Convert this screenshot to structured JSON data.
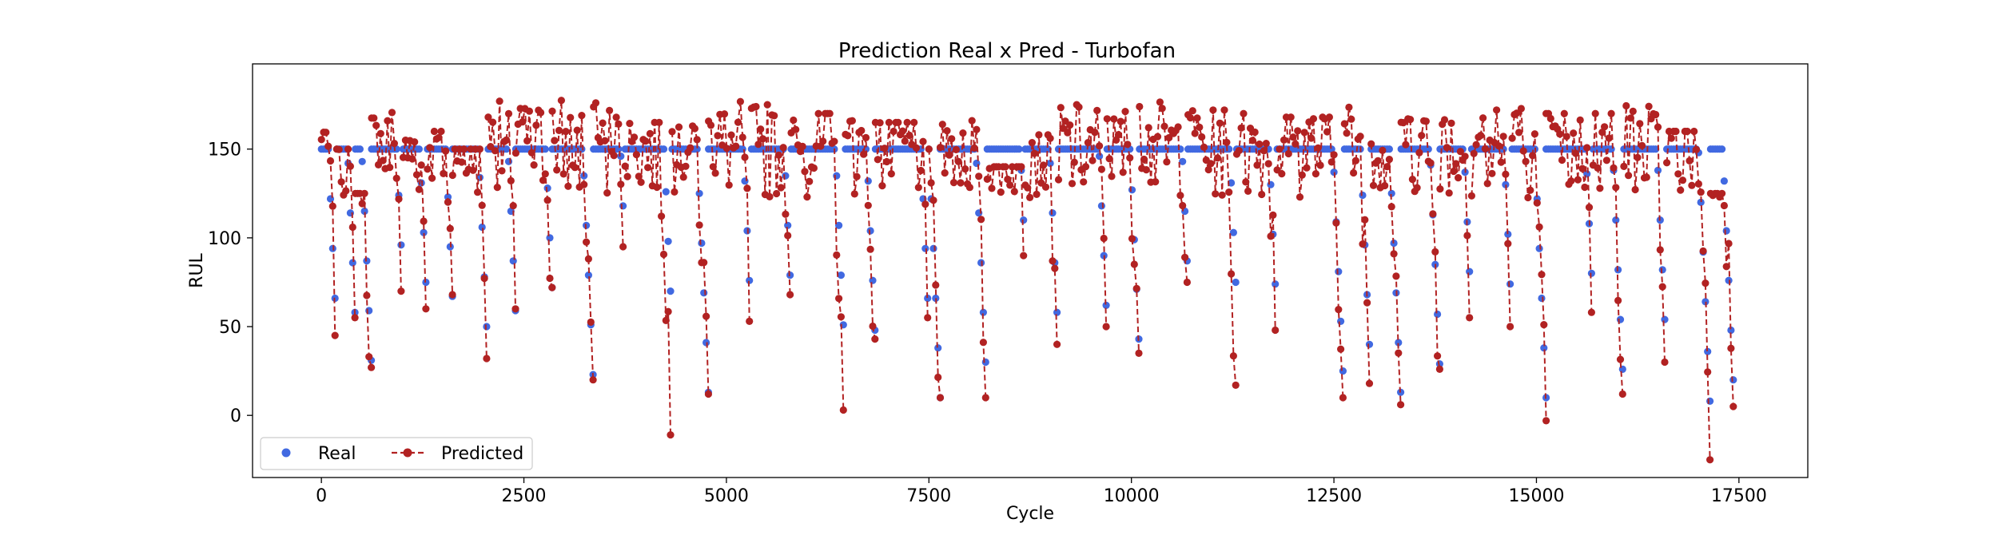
{
  "chart_data": {
    "type": "scatter",
    "title": "Prediction Real x Pred - Turbofan",
    "xlabel": "Cycle",
    "ylabel": "RUL",
    "xlim": [
      -850,
      18350
    ],
    "ylim": [
      -35,
      198
    ],
    "xticks": [
      0,
      2500,
      5000,
      7500,
      10000,
      12500,
      15000,
      17500
    ],
    "yticks": [
      0,
      50,
      100,
      150
    ],
    "xtick_labels": [
      "0",
      "2500",
      "5000",
      "7500",
      "10000",
      "12500",
      "15000",
      "17500"
    ],
    "ytick_labels": [
      "0",
      "50",
      "100",
      "150"
    ],
    "grid": false,
    "legend_position": "lower-left",
    "colors": {
      "real": "#4169e1",
      "predicted": "#b22222"
    },
    "series": [
      {
        "name": "Real",
        "style": "markers",
        "color": "#4169e1",
        "engines": [
          {
            "x0": 0,
            "x1": 190,
            "min": 44
          },
          {
            "x0": 190,
            "x1": 420,
            "min": 52
          },
          {
            "x0": 420,
            "x1": 620,
            "min": 27
          },
          {
            "x0": 620,
            "x1": 1010,
            "min": 70
          },
          {
            "x0": 1010,
            "x1": 1310,
            "min": 55
          },
          {
            "x0": 1310,
            "x1": 1620,
            "min": 65
          },
          {
            "x0": 1620,
            "x1": 2060,
            "min": 30
          },
          {
            "x0": 2060,
            "x1": 2400,
            "min": 55
          },
          {
            "x0": 2400,
            "x1": 2850,
            "min": 70
          },
          {
            "x0": 2850,
            "x1": 3360,
            "min": 17
          },
          {
            "x0": 3360,
            "x1": 3750,
            "min": 92
          },
          {
            "x0": 3750,
            "x1": 4330,
            "min": 50
          },
          {
            "x0": 4330,
            "x1": 4780,
            "min": 11
          },
          {
            "x0": 4780,
            "x1": 5310,
            "min": 50
          },
          {
            "x0": 5310,
            "x1": 5800,
            "min": 65
          },
          {
            "x0": 5800,
            "x1": 6470,
            "min": 25
          },
          {
            "x0": 6470,
            "x1": 6840,
            "min": 42
          },
          {
            "x0": 6840,
            "x1": 7500,
            "min": 50
          },
          {
            "x0": 7500,
            "x1": 7640,
            "min": 7
          },
          {
            "x0": 7640,
            "x1": 8220,
            "min": 10
          },
          {
            "x0": 8220,
            "x1": 8690,
            "min": 88
          },
          {
            "x0": 8690,
            "x1": 9100,
            "min": 40
          },
          {
            "x0": 9100,
            "x1": 9700,
            "min": 50
          },
          {
            "x0": 9700,
            "x1": 10100,
            "min": 35
          },
          {
            "x0": 10100,
            "x1": 10700,
            "min": 75
          },
          {
            "x0": 10700,
            "x1": 11300,
            "min": 63
          },
          {
            "x0": 11300,
            "x1": 11800,
            "min": 50
          },
          {
            "x0": 11800,
            "x1": 12630,
            "min": 7
          },
          {
            "x0": 12630,
            "x1": 12960,
            "min": 18
          },
          {
            "x0": 12960,
            "x1": 13330,
            "min": 7
          },
          {
            "x0": 13330,
            "x1": 13810,
            "min": 25
          },
          {
            "x0": 13810,
            "x1": 14200,
            "min": 55
          },
          {
            "x0": 14200,
            "x1": 14700,
            "min": 50
          },
          {
            "x0": 14700,
            "x1": 15120,
            "min": 10
          },
          {
            "x0": 15120,
            "x1": 15700,
            "min": 60
          },
          {
            "x0": 15700,
            "x1": 16080,
            "min": 10
          },
          {
            "x0": 16080,
            "x1": 16610,
            "min": 28
          },
          {
            "x0": 16610,
            "x1": 17150,
            "min": 0
          },
          {
            "x0": 17150,
            "x1": 17450,
            "min": 0
          }
        ]
      },
      {
        "name": "Predicted",
        "style": "dashed-line-markers",
        "color": "#b22222",
        "engines": [
          {
            "x0": 0,
            "x1": 190,
            "end": 45,
            "top": 160
          },
          {
            "x0": 190,
            "x1": 420,
            "end": 55,
            "top": 150
          },
          {
            "x0": 420,
            "x1": 620,
            "end": 27,
            "top": 125
          },
          {
            "x0": 620,
            "x1": 1010,
            "end": 70,
            "top": 175
          },
          {
            "x0": 1010,
            "x1": 1310,
            "end": 60,
            "top": 155
          },
          {
            "x0": 1310,
            "x1": 1620,
            "end": 68,
            "top": 160
          },
          {
            "x0": 1620,
            "x1": 2060,
            "end": 32,
            "top": 150
          },
          {
            "x0": 2060,
            "x1": 2400,
            "end": 60,
            "top": 189
          },
          {
            "x0": 2400,
            "x1": 2850,
            "end": 72,
            "top": 176
          },
          {
            "x0": 2850,
            "x1": 3360,
            "end": 20,
            "top": 183
          },
          {
            "x0": 3360,
            "x1": 3750,
            "end": 95,
            "top": 176
          },
          {
            "x0": 3750,
            "x1": 4330,
            "end": -11,
            "top": 165
          },
          {
            "x0": 4330,
            "x1": 4780,
            "end": 12,
            "top": 163
          },
          {
            "x0": 4780,
            "x1": 5310,
            "end": 53,
            "top": 183
          },
          {
            "x0": 5310,
            "x1": 5800,
            "end": 68,
            "top": 176
          },
          {
            "x0": 5800,
            "x1": 6470,
            "end": 3,
            "top": 170
          },
          {
            "x0": 6470,
            "x1": 6840,
            "end": 43,
            "top": 170
          },
          {
            "x0": 6840,
            "x1": 7500,
            "end": 55,
            "top": 165
          },
          {
            "x0": 7500,
            "x1": 7640,
            "end": 10,
            "top": 150
          },
          {
            "x0": 7640,
            "x1": 8220,
            "end": 10,
            "top": 166
          },
          {
            "x0": 8220,
            "x1": 8690,
            "end": 90,
            "top": 140
          },
          {
            "x0": 8690,
            "x1": 9100,
            "end": 40,
            "top": 158
          },
          {
            "x0": 9100,
            "x1": 9700,
            "end": 50,
            "top": 175
          },
          {
            "x0": 9700,
            "x1": 10100,
            "end": 35,
            "top": 172
          },
          {
            "x0": 10100,
            "x1": 10700,
            "end": 75,
            "top": 177
          },
          {
            "x0": 10700,
            "x1": 11300,
            "end": 17,
            "top": 172
          },
          {
            "x0": 11300,
            "x1": 11800,
            "end": 48,
            "top": 170
          },
          {
            "x0": 11800,
            "x1": 12630,
            "end": 10,
            "top": 168
          },
          {
            "x0": 12630,
            "x1": 12960,
            "end": 18,
            "top": 180
          },
          {
            "x0": 12960,
            "x1": 13330,
            "end": 6,
            "top": 172
          },
          {
            "x0": 13330,
            "x1": 13810,
            "end": 26,
            "top": 167
          },
          {
            "x0": 13810,
            "x1": 14200,
            "end": 55,
            "top": 170
          },
          {
            "x0": 14200,
            "x1": 14700,
            "end": 50,
            "top": 172
          },
          {
            "x0": 14700,
            "x1": 15120,
            "end": -3,
            "top": 175
          },
          {
            "x0": 15120,
            "x1": 15700,
            "end": 58,
            "top": 170
          },
          {
            "x0": 15700,
            "x1": 16080,
            "end": 12,
            "top": 170
          },
          {
            "x0": 16080,
            "x1": 16610,
            "end": 30,
            "top": 180
          },
          {
            "x0": 16610,
            "x1": 17150,
            "end": -25,
            "top": 160
          },
          {
            "x0": 17150,
            "x1": 17450,
            "end": 5,
            "top": 125
          }
        ]
      }
    ]
  }
}
